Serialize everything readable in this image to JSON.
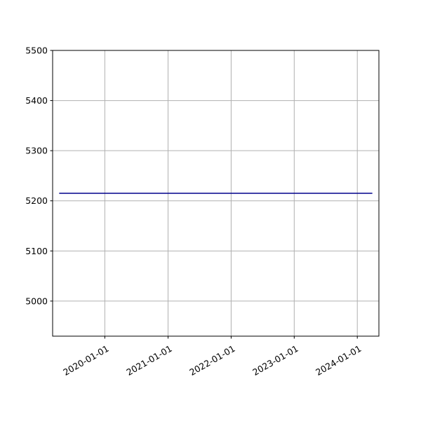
{
  "chart_data": {
    "type": "line",
    "title": "",
    "xlabel": "",
    "ylabel": "",
    "x_axis_type": "date",
    "xlim": [
      "2019-03-05",
      "2024-05-05"
    ],
    "ylim": [
      4930,
      5500
    ],
    "x_ticks": [
      "2020-01-01",
      "2021-01-01",
      "2022-01-01",
      "2023-01-01",
      "2024-01-01"
    ],
    "y_ticks": [
      5000,
      5100,
      5200,
      5300,
      5400,
      5500
    ],
    "grid": true,
    "legend": "none",
    "series": [
      {
        "color": "#00008b",
        "x": [
          "2019-04-15",
          "2024-03-25"
        ],
        "y": [
          5215,
          5215
        ]
      }
    ]
  }
}
